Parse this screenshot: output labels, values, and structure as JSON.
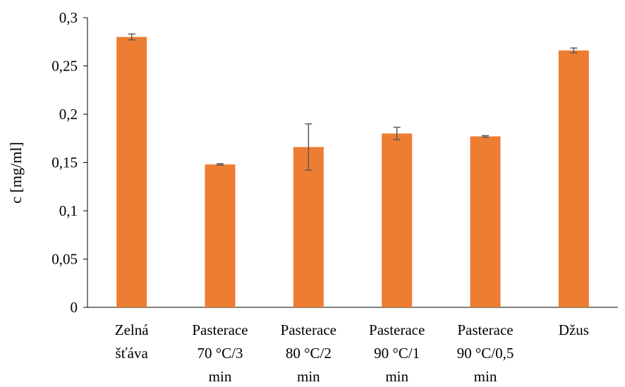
{
  "chart_data": {
    "type": "bar",
    "title": "",
    "xlabel": "",
    "ylabel": "c [mg/ml]",
    "ylim": [
      0,
      0.3
    ],
    "yticks": [
      0,
      0.05,
      0.1,
      0.15,
      0.2,
      0.25,
      0.3
    ],
    "ytick_labels": [
      "0",
      "0,05",
      "0,1",
      "0,15",
      "0,2",
      "0,25",
      "0,3"
    ],
    "categories": [
      [
        "Zelná",
        "šťáva"
      ],
      [
        "Pasterace",
        "70 °C/3",
        "min"
      ],
      [
        "Pasterace",
        "80 °C/2",
        "min"
      ],
      [
        "Pasterace",
        "90 °C/1",
        "min"
      ],
      [
        "Pasterace",
        "90 °C/0,5",
        "min"
      ],
      [
        "Džus"
      ]
    ],
    "values": [
      0.28,
      0.148,
      0.166,
      0.18,
      0.177,
      0.266
    ],
    "errors": [
      0.003,
      0.0007,
      0.024,
      0.0065,
      0.0008,
      0.0025
    ],
    "grid": false,
    "legend": "none",
    "bar_color": "#ED7D31",
    "error_bar_color": "#595959",
    "axis_color": "#000000"
  }
}
